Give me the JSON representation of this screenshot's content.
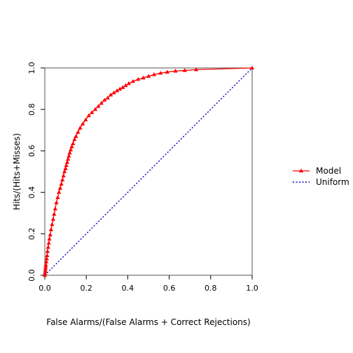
{
  "chart_data": {
    "type": "line",
    "title": "",
    "xlabel": "False Alarms/(False Alarms + Correct Rejections)",
    "ylabel": "Hits/(Hits+Misses)",
    "xlim": [
      0,
      1
    ],
    "ylim": [
      0,
      1
    ],
    "x_ticks": [
      "0.0",
      "0.2",
      "0.4",
      "0.6",
      "0.8",
      "1.0"
    ],
    "y_ticks": [
      "0.0",
      "0.2",
      "0.4",
      "0.6",
      "0.8",
      "1.0"
    ],
    "grid": false,
    "legend_position": "right",
    "series": [
      {
        "name": "Model",
        "color": "#ff0000",
        "marker": "triangle",
        "x": [
          0.0,
          0.001,
          0.002,
          0.003,
          0.004,
          0.005,
          0.007,
          0.009,
          0.011,
          0.013,
          0.016,
          0.019,
          0.022,
          0.026,
          0.03,
          0.035,
          0.04,
          0.045,
          0.05,
          0.056,
          0.062,
          0.068,
          0.074,
          0.08,
          0.085,
          0.09,
          0.095,
          0.1,
          0.104,
          0.108,
          0.112,
          0.116,
          0.12,
          0.125,
          0.13,
          0.136,
          0.143,
          0.15,
          0.16,
          0.17,
          0.183,
          0.197,
          0.212,
          0.227,
          0.243,
          0.258,
          0.273,
          0.288,
          0.303,
          0.318,
          0.333,
          0.348,
          0.362,
          0.376,
          0.39,
          0.405,
          0.425,
          0.45,
          0.475,
          0.5,
          0.527,
          0.558,
          0.59,
          0.63,
          0.675,
          0.73,
          1.0
        ],
        "y": [
          0.0,
          0.01,
          0.02,
          0.03,
          0.04,
          0.05,
          0.065,
          0.08,
          0.095,
          0.115,
          0.135,
          0.155,
          0.175,
          0.195,
          0.22,
          0.245,
          0.27,
          0.295,
          0.32,
          0.35,
          0.375,
          0.4,
          0.42,
          0.44,
          0.46,
          0.48,
          0.5,
          0.515,
          0.53,
          0.545,
          0.56,
          0.575,
          0.59,
          0.605,
          0.62,
          0.635,
          0.655,
          0.67,
          0.69,
          0.71,
          0.73,
          0.75,
          0.77,
          0.785,
          0.8,
          0.815,
          0.83,
          0.845,
          0.855,
          0.87,
          0.88,
          0.89,
          0.898,
          0.906,
          0.915,
          0.925,
          0.935,
          0.945,
          0.952,
          0.96,
          0.968,
          0.975,
          0.98,
          0.985,
          0.988,
          0.992,
          1.0
        ]
      },
      {
        "name": "Uniform",
        "color": "#0000cc",
        "style": "dotted",
        "x": [
          0,
          1
        ],
        "y": [
          0,
          1
        ]
      }
    ]
  }
}
